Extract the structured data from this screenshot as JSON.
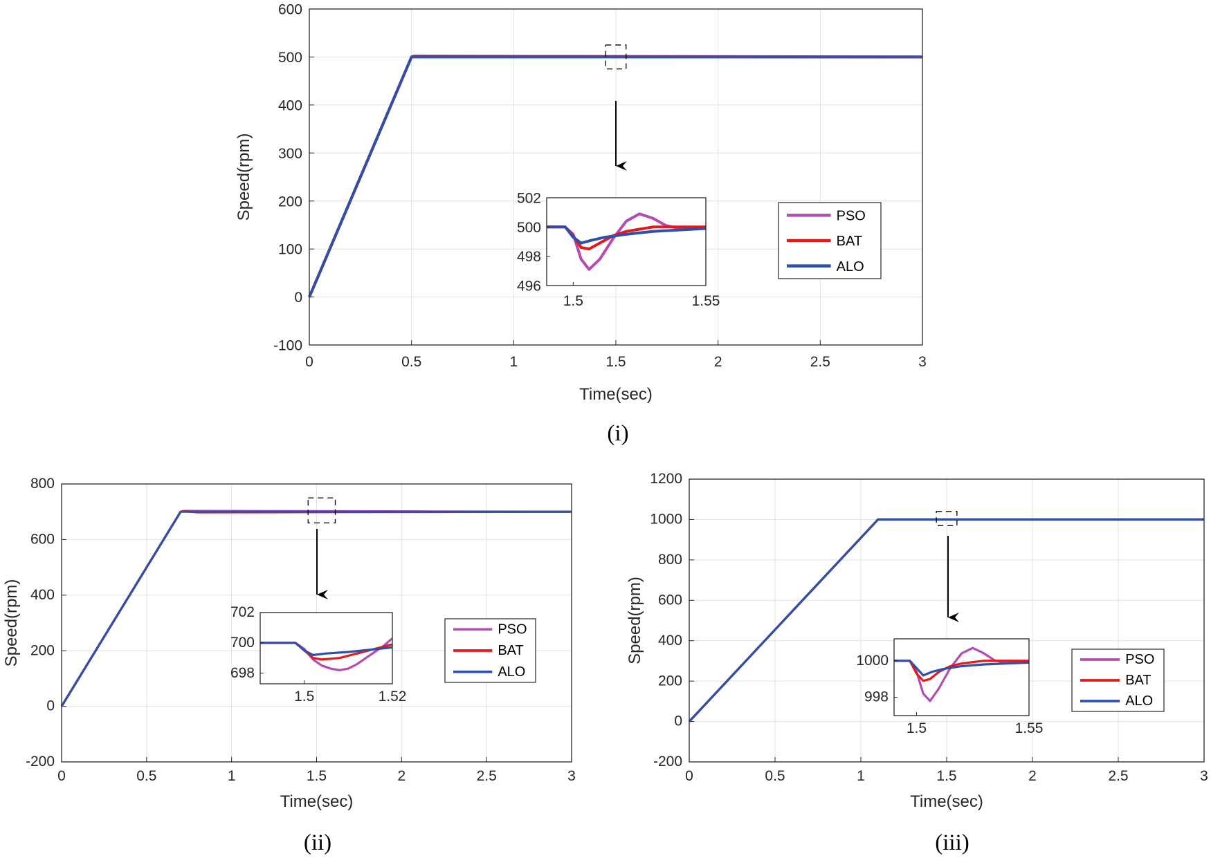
{
  "chart_data": [
    {
      "id": "i",
      "type": "line",
      "caption": "(i)",
      "xlabel": "Time(sec)",
      "ylabel": "Speed(rpm)",
      "xlim": [
        0,
        3
      ],
      "ylim": [
        -100,
        600
      ],
      "xticks": [
        "0",
        "0.5",
        "1",
        "1.5",
        "2",
        "2.5",
        "3"
      ],
      "yticks": [
        "-100",
        "0",
        "100",
        "200",
        "300",
        "400",
        "500",
        "600"
      ],
      "grid": true,
      "legend_position": "right",
      "series": [
        {
          "name": "PSO",
          "color": "#b44bb4",
          "x": [
            0,
            0.5,
            0.51,
            3
          ],
          "y": [
            0,
            500,
            502,
            500
          ]
        },
        {
          "name": "BAT",
          "color": "#e31a1c",
          "x": [
            0,
            0.5,
            0.51,
            3
          ],
          "y": [
            0,
            500,
            501,
            500
          ]
        },
        {
          "name": "ALO",
          "color": "#2f4fa8",
          "x": [
            0,
            0.5,
            3
          ],
          "y": [
            0,
            500,
            500
          ]
        }
      ],
      "zoom_box": {
        "x": [
          1.45,
          1.55
        ],
        "y": [
          475,
          525
        ]
      },
      "inset": {
        "xlim": [
          1.49,
          1.55
        ],
        "ylim": [
          496,
          502
        ],
        "xticks": [
          "1.5",
          "1.55"
        ],
        "yticks": [
          "496",
          "498",
          "500",
          "502"
        ],
        "series": [
          {
            "name": "PSO",
            "color": "#b44bb4",
            "x": [
              1.49,
              1.497,
              1.5,
              1.503,
              1.506,
              1.51,
              1.515,
              1.52,
              1.525,
              1.53,
              1.535,
              1.54,
              1.55
            ],
            "y": [
              500,
              500,
              499.5,
              497.8,
              497.1,
              497.8,
              499.2,
              500.4,
              500.9,
              500.6,
              500.1,
              499.9,
              500
            ]
          },
          {
            "name": "BAT",
            "color": "#e31a1c",
            "x": [
              1.49,
              1.497,
              1.5,
              1.503,
              1.506,
              1.51,
              1.515,
              1.52,
              1.525,
              1.53,
              1.54,
              1.55
            ],
            "y": [
              500,
              500,
              499.4,
              498.6,
              498.5,
              498.9,
              499.4,
              499.7,
              499.85,
              500,
              500,
              500
            ]
          },
          {
            "name": "ALO",
            "color": "#2f4fa8",
            "x": [
              1.49,
              1.497,
              1.5,
              1.503,
              1.507,
              1.512,
              1.52,
              1.53,
              1.54,
              1.55
            ],
            "y": [
              500,
              500,
              499.3,
              498.9,
              499.1,
              499.3,
              499.5,
              499.7,
              499.8,
              499.9
            ]
          }
        ]
      }
    },
    {
      "id": "ii",
      "type": "line",
      "caption": "(ii)",
      "xlabel": "Time(sec)",
      "ylabel": "Speed(rpm)",
      "xlim": [
        0,
        3
      ],
      "ylim": [
        -200,
        800
      ],
      "xticks": [
        "0",
        "0.5",
        "1",
        "1.5",
        "2",
        "2.5",
        "3"
      ],
      "yticks": [
        "-200",
        "0",
        "200",
        "400",
        "600",
        "800"
      ],
      "grid": true,
      "legend_position": "right",
      "series": [
        {
          "name": "PSO",
          "color": "#b44bb4",
          "x": [
            0,
            0.7,
            0.72,
            3
          ],
          "y": [
            0,
            700,
            703,
            700
          ]
        },
        {
          "name": "BAT",
          "color": "#e31a1c",
          "x": [
            0,
            0.7,
            0.72,
            0.8,
            3
          ],
          "y": [
            0,
            700,
            702,
            698,
            700
          ]
        },
        {
          "name": "ALO",
          "color": "#2f4fa8",
          "x": [
            0,
            0.7,
            3
          ],
          "y": [
            0,
            700,
            700
          ]
        }
      ],
      "zoom_box": {
        "x": [
          1.45,
          1.61
        ],
        "y": [
          660,
          750
        ]
      },
      "inset": {
        "xlim": [
          1.49,
          1.52
        ],
        "ylim": [
          697.3,
          702
        ],
        "xticks": [
          "1.5",
          "1.52"
        ],
        "yticks": [
          "698",
          "700",
          "702"
        ],
        "series": [
          {
            "name": "PSO",
            "color": "#b44bb4",
            "x": [
              1.49,
              1.498,
              1.5,
              1.502,
              1.504,
              1.506,
              1.508,
              1.51,
              1.512,
              1.514,
              1.516,
              1.518,
              1.52
            ],
            "y": [
              700,
              700,
              699.6,
              698.9,
              698.5,
              698.3,
              698.2,
              698.3,
              698.6,
              699.0,
              699.4,
              699.8,
              700.3
            ]
          },
          {
            "name": "BAT",
            "color": "#e31a1c",
            "x": [
              1.49,
              1.498,
              1.5,
              1.502,
              1.504,
              1.508,
              1.512,
              1.516,
              1.52
            ],
            "y": [
              700,
              700,
              699.5,
              699.0,
              698.9,
              699.0,
              699.3,
              699.6,
              699.9
            ]
          },
          {
            "name": "ALO",
            "color": "#2f4fa8",
            "x": [
              1.49,
              1.498,
              1.5,
              1.502,
              1.505,
              1.51,
              1.515,
              1.52
            ],
            "y": [
              700,
              700,
              699.5,
              699.2,
              699.3,
              699.4,
              699.55,
              699.7
            ]
          }
        ]
      }
    },
    {
      "id": "iii",
      "type": "line",
      "caption": "(iii)",
      "xlabel": "Time(sec)",
      "ylabel": "Speed(rpm)",
      "xlim": [
        0,
        3
      ],
      "ylim": [
        -200,
        1200
      ],
      "xticks": [
        "0",
        "0.5",
        "1",
        "1.5",
        "2",
        "2.5",
        "3"
      ],
      "yticks": [
        "-200",
        "0",
        "200",
        "400",
        "600",
        "800",
        "1000",
        "1200"
      ],
      "grid": true,
      "legend_position": "right",
      "series": [
        {
          "name": "PSO",
          "color": "#b44bb4",
          "x": [
            0,
            1.1,
            3
          ],
          "y": [
            0,
            1000,
            1000
          ]
        },
        {
          "name": "BAT",
          "color": "#e31a1c",
          "x": [
            0,
            1.1,
            3
          ],
          "y": [
            0,
            1000,
            1000
          ]
        },
        {
          "name": "ALO",
          "color": "#2f4fa8",
          "x": [
            0,
            1.1,
            3
          ],
          "y": [
            0,
            1000,
            1000
          ]
        }
      ],
      "zoom_box": {
        "x": [
          1.44,
          1.56
        ],
        "y": [
          970,
          1040
        ]
      },
      "inset": {
        "xlim": [
          1.49,
          1.55
        ],
        "ylim": [
          997,
          1001.2
        ],
        "xticks": [
          "1.5",
          "1.55"
        ],
        "yticks": [
          "998",
          "1000"
        ],
        "series": [
          {
            "name": "PSO",
            "color": "#b44bb4",
            "x": [
              1.49,
              1.497,
              1.5,
              1.503,
              1.506,
              1.51,
              1.515,
              1.52,
              1.525,
              1.53,
              1.535,
              1.54,
              1.55
            ],
            "y": [
              1000,
              1000,
              999.4,
              998.2,
              997.8,
              998.5,
              999.6,
              1000.4,
              1000.7,
              1000.4,
              1000.0,
              999.9,
              1000
            ]
          },
          {
            "name": "BAT",
            "color": "#e31a1c",
            "x": [
              1.49,
              1.497,
              1.5,
              1.503,
              1.506,
              1.51,
              1.515,
              1.52,
              1.53,
              1.54,
              1.55
            ],
            "y": [
              1000,
              1000,
              999.3,
              998.9,
              999.0,
              999.4,
              999.7,
              999.85,
              1000,
              1000,
              1000
            ]
          },
          {
            "name": "ALO",
            "color": "#2f4fa8",
            "x": [
              1.49,
              1.497,
              1.5,
              1.503,
              1.507,
              1.512,
              1.52,
              1.53,
              1.54,
              1.55
            ],
            "y": [
              1000,
              1000,
              999.6,
              999.2,
              999.4,
              999.55,
              999.7,
              999.8,
              999.85,
              999.9
            ]
          }
        ]
      }
    }
  ]
}
